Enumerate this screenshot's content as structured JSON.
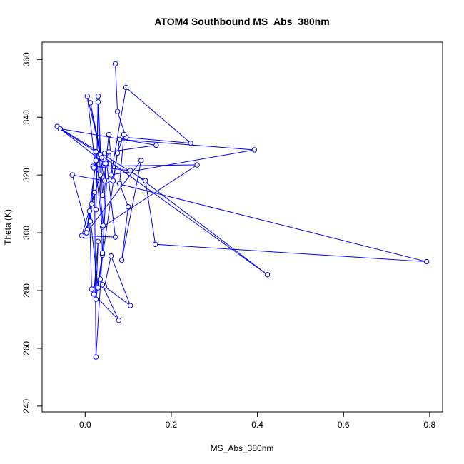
{
  "chart_data": {
    "type": "line",
    "title": "ATOM4 Southbound MS_Abs_380nm",
    "xlabel": "MS_Abs_380nm",
    "ylabel": "Theta (K)",
    "xlim": [
      -0.1,
      0.83
    ],
    "ylim": [
      238,
      366
    ],
    "xticks": [
      0.0,
      0.2,
      0.4,
      0.6,
      0.8
    ],
    "xtick_labels": [
      "0.0",
      "0.2",
      "0.4",
      "0.6",
      "0.8"
    ],
    "yticks": [
      240,
      260,
      280,
      300,
      320,
      340,
      360
    ],
    "ytick_labels": [
      "240",
      "260",
      "280",
      "300",
      "320",
      "340",
      "360"
    ],
    "grid": false,
    "marker": "open-circle",
    "color": "#0000ff",
    "series": [
      {
        "points": [
          [
            0.07,
            358.5
          ],
          [
            0.075,
            342.0
          ],
          [
            0.095,
            333.0
          ],
          [
            0.245,
            331.0
          ],
          [
            0.095,
            350.3
          ],
          [
            0.06,
            320.0
          ],
          [
            0.393,
            328.7
          ],
          [
            0.08,
            332.3
          ],
          [
            0.065,
            318.0
          ],
          [
            0.055,
            334.0
          ],
          [
            0.04,
            313.0
          ],
          [
            0.03,
            347.3
          ],
          [
            0.025,
            308.0
          ],
          [
            0.03,
            345.3
          ],
          [
            0.04,
            292.3
          ],
          [
            0.05,
            318.0
          ],
          [
            0.793,
            290.0
          ],
          [
            0.163,
            296.0
          ],
          [
            0.14,
            318.0
          ],
          [
            -0.065,
            336.8
          ],
          [
            0.045,
            324.0
          ],
          [
            0.055,
            328.0
          ],
          [
            0.165,
            330.3
          ],
          [
            -0.058,
            336.0
          ],
          [
            0.035,
            327.0
          ],
          [
            0.423,
            285.5
          ],
          [
            0.105,
            321.5
          ],
          [
            0.018,
            323.0
          ],
          [
            0.26,
            323.5
          ],
          [
            0.04,
            302.0
          ],
          [
            0.005,
            347.3
          ],
          [
            0.038,
            326.0
          ],
          [
            0.012,
            345.0
          ],
          [
            0.045,
            318.0
          ],
          [
            -0.03,
            320.0
          ],
          [
            0.005,
            301.0
          ],
          [
            0.025,
            325.0
          ],
          [
            0.003,
            300.0
          ],
          [
            0.13,
            325.0
          ],
          [
            0.085,
            290.5
          ],
          [
            0.1,
            309.0
          ],
          [
            0.08,
            317.0
          ],
          [
            0.09,
            334.0
          ],
          [
            0.075,
            327.6
          ],
          [
            0.03,
            281.0
          ],
          [
            0.01,
            307.5
          ],
          [
            0.015,
            280.5
          ],
          [
            0.035,
            284.0
          ],
          [
            0.045,
            281.5
          ],
          [
            0.06,
            292.0
          ],
          [
            0.105,
            274.8
          ],
          [
            0.04,
            282.0
          ],
          [
            0.078,
            269.7
          ],
          [
            0.02,
            278.8
          ],
          [
            0.03,
            297.0
          ],
          [
            0.025,
            277.0
          ],
          [
            0.04,
            293.0
          ],
          [
            0.025,
            257.0
          ],
          [
            0.022,
            314.0
          ],
          [
            -0.008,
            299.0
          ],
          [
            0.07,
            298.5
          ],
          [
            0.05,
            324.0
          ],
          [
            0.025,
            328.0
          ],
          [
            0.045,
            327.5
          ],
          [
            0.02,
            322.5
          ],
          [
            0.035,
            320.0
          ],
          [
            0.015,
            310.0
          ],
          [
            0.012,
            304.0
          ],
          [
            0.025,
            328.0
          ],
          [
            0.042,
            302.5
          ],
          [
            0.048,
            324.0
          ]
        ]
      }
    ]
  }
}
